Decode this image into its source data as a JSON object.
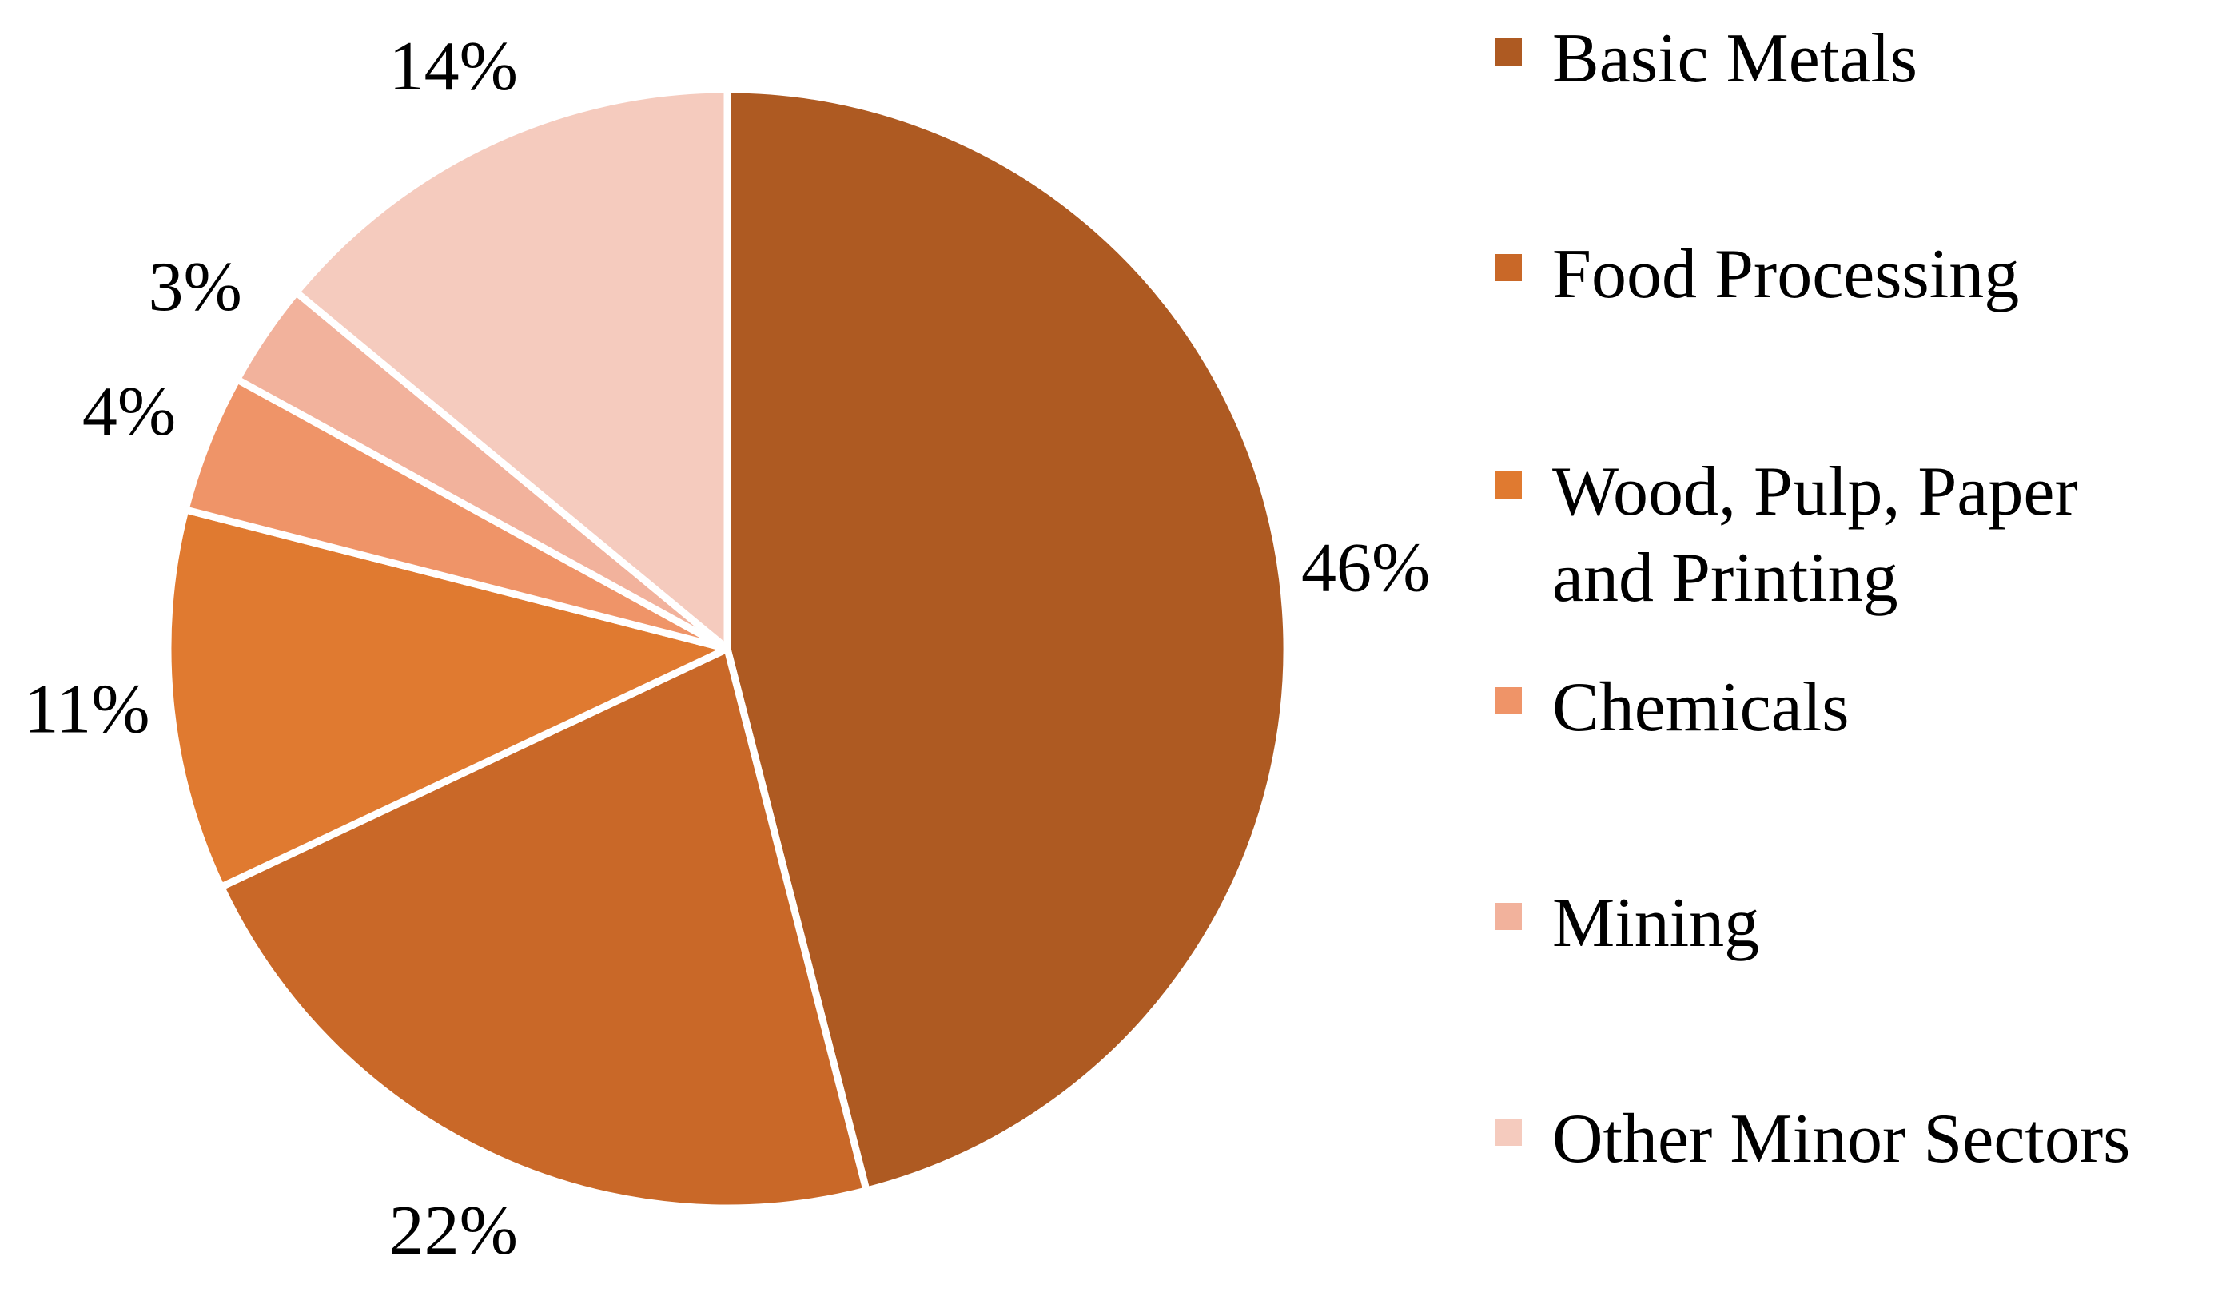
{
  "chart_data": {
    "type": "pie",
    "title": "",
    "labels": [
      "Basic Metals",
      "Food Processing",
      "Wood, Pulp, Paper and Printing",
      "Chemicals",
      "Mining",
      "Other Minor Sectors"
    ],
    "values": [
      46,
      22,
      11,
      4,
      3,
      14
    ],
    "value_labels": [
      "46%",
      "22%",
      "11%",
      "4%",
      "3%",
      "14%"
    ],
    "colors": [
      "#AE5A22",
      "#C96828",
      "#E07A30",
      "#EF9468",
      "#F2B29C",
      "#F5CBBE"
    ],
    "start_angle": "12 o'clock",
    "direction": "clockwise",
    "legend_position": "right"
  },
  "legend": {
    "items": [
      {
        "label": "Basic Metals",
        "color": "#AE5A22"
      },
      {
        "label": "Food Processing",
        "color": "#C96828"
      },
      {
        "label": "Wood, Pulp, Paper\nand Printing",
        "color": "#E07A30"
      },
      {
        "label": "Chemicals",
        "color": "#EF9468"
      },
      {
        "label": "Mining",
        "color": "#F2B29C"
      },
      {
        "label": "Other Minor Sectors",
        "color": "#F5CBBE"
      }
    ]
  }
}
